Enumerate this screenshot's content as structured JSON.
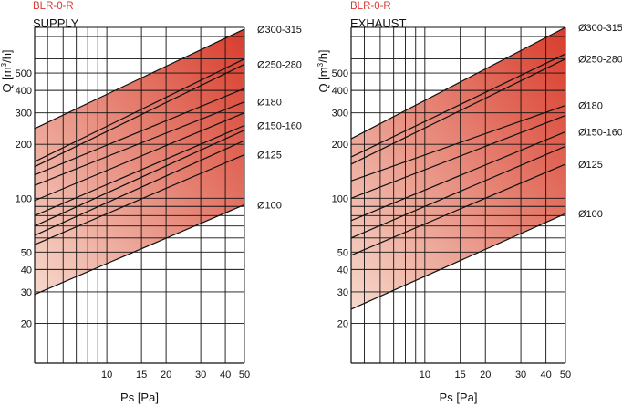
{
  "colors": {
    "band_light": "#f6d9cc",
    "band_dark": "#d93c2c",
    "grid": "#111111",
    "title": "#d63a32"
  },
  "chart_data": [
    {
      "type": "line",
      "model": "BLR-0-R",
      "title": "SUPPLY",
      "xlabel": "Ps [Pa]",
      "ylabel_base": "Q [m",
      "ylabel_sup": "3",
      "ylabel_end": "/h]",
      "x_scale": "log",
      "y_scale": "log",
      "xlim": [
        4.3,
        50
      ],
      "ylim": [
        12,
        900
      ],
      "x_ticks": [
        10,
        15,
        20,
        30,
        40,
        50
      ],
      "y_ticks": [
        20,
        30,
        40,
        50,
        100,
        200,
        300,
        400,
        500
      ],
      "grid": true,
      "band": {
        "lower": [
          [
            4.3,
            29
          ],
          [
            50,
            92
          ]
        ],
        "upper": [
          [
            4.3,
            245
          ],
          [
            50,
            880
          ]
        ]
      },
      "series": [
        {
          "name": "Ø100",
          "points": [
            [
              4.3,
              29
            ],
            [
              50,
              92
            ]
          ]
        },
        {
          "name": "Ø125",
          "points": [
            [
              4.3,
              55
            ],
            [
              50,
              175
            ]
          ]
        },
        {
          "name": "Ø150-160",
          "points": [
            [
              4.3,
              80
            ],
            [
              50,
              255
            ]
          ]
        },
        {
          "name": "Ø180",
          "points": [
            [
              4.3,
              118
            ],
            [
              50,
              345
            ]
          ]
        },
        {
          "name": "Ø250-280",
          "points": [
            [
              4.3,
              150
            ],
            [
              50,
              560
            ]
          ]
        },
        {
          "name": "Ø300-315",
          "points": [
            [
              4.3,
              245
            ],
            [
              50,
              880
            ]
          ]
        }
      ],
      "extra_lines": [
        {
          "points": [
            [
              4.3,
              62
            ],
            [
              50,
              210
            ]
          ]
        },
        {
          "points": [
            [
              4.3,
              70
            ],
            [
              50,
              240
            ]
          ]
        },
        {
          "points": [
            [
              4.3,
              97
            ],
            [
              50,
              300
            ]
          ]
        },
        {
          "points": [
            [
              4.3,
              135
            ],
            [
              50,
              410
            ]
          ]
        },
        {
          "points": [
            [
              4.3,
              160
            ],
            [
              50,
              600
            ]
          ]
        }
      ]
    },
    {
      "type": "line",
      "model": "BLR-0-R",
      "title": "EXHAUST",
      "xlabel": "Ps [Pa]",
      "ylabel_base": "Q [m",
      "ylabel_sup": "3",
      "ylabel_end": "/h]",
      "x_scale": "log",
      "y_scale": "log",
      "xlim": [
        4.3,
        50
      ],
      "ylim": [
        12,
        900
      ],
      "x_ticks": [
        10,
        15,
        20,
        30,
        40,
        50
      ],
      "y_ticks": [
        20,
        30,
        40,
        50,
        100,
        200,
        300,
        400,
        500
      ],
      "grid": true,
      "band": {
        "lower": [
          [
            4.3,
            24
          ],
          [
            50,
            82
          ]
        ],
        "upper": [
          [
            4.3,
            215
          ],
          [
            50,
            900
          ]
        ]
      },
      "series": [
        {
          "name": "Ø100",
          "points": [
            [
              4.3,
              24
            ],
            [
              50,
              82
            ]
          ]
        },
        {
          "name": "Ø125",
          "points": [
            [
              4.3,
              48
            ],
            [
              50,
              155
            ]
          ]
        },
        {
          "name": "Ø150-160",
          "points": [
            [
              4.3,
              75
            ],
            [
              50,
              235
            ]
          ]
        },
        {
          "name": "Ø180",
          "points": [
            [
              4.3,
              125
            ],
            [
              50,
              330
            ]
          ]
        },
        {
          "name": "Ø250-280",
          "points": [
            [
              4.3,
              155
            ],
            [
              50,
              600
            ]
          ]
        },
        {
          "name": "Ø300-315",
          "points": [
            [
              4.3,
              215
            ],
            [
              50,
              900
            ]
          ]
        }
      ],
      "extra_lines": [
        {
          "points": [
            [
              4.3,
              60
            ],
            [
              50,
              195
            ]
          ]
        },
        {
          "points": [
            [
              4.3,
              100
            ],
            [
              50,
              290
            ]
          ]
        },
        {
          "points": [
            [
              4.3,
              170
            ],
            [
              50,
              640
            ]
          ]
        }
      ]
    }
  ]
}
